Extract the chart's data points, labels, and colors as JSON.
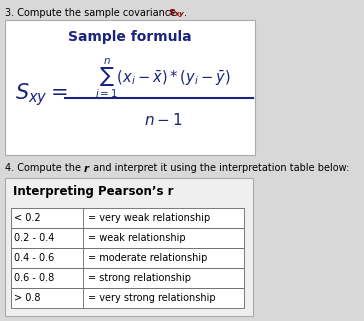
{
  "bg_color": "#d8d8d8",
  "box_bg_color": "#ffffff",
  "box2_bg_color": "#efefef",
  "title_text": "Sample formula",
  "title_color": "#1a237e",
  "formula_color": "#1a237e",
  "step3_plain": "3. Compute the sample covariance ",
  "step3_bold_italic": "s",
  "step4_plain1": "4. Compute the ",
  "step4_r": "r",
  "step4_plain2": " and interpret it using the interpretation table below:",
  "pearson_title": "Interpreting Pearson’s r",
  "table_ranges": [
    "< 0.2",
    "0.2 - 0.4",
    "0.4 - 0.6",
    "0.6 - 0.8",
    "> 0.8"
  ],
  "table_meanings": [
    "= very weak relationship",
    "= weak relationship",
    "= moderate relationship",
    "= strong relationship",
    "= very strong relationship"
  ],
  "table_row_bg": "#ffffff",
  "text_color": "#000000",
  "dark_navy": "#1a237e"
}
